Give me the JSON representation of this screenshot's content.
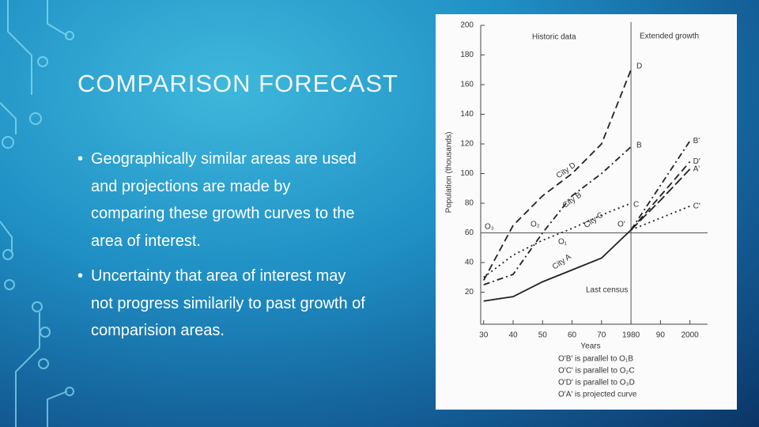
{
  "slide": {
    "title": "COMPARISON FORECAST",
    "bullets": [
      [
        "Geographically similar areas are used",
        "and projections are made by",
        "comparing these growth curves to the",
        "area of interest."
      ],
      [
        "Uncertainty that area of interest may",
        "not progress similarily to past growth of",
        "comparision areas."
      ]
    ]
  },
  "chart_data": {
    "type": "line",
    "y_label": "Population (thousands)",
    "x_label": "Years",
    "x": [
      1930,
      1940,
      1950,
      1960,
      1970,
      1980,
      1990,
      2000
    ],
    "xlim": [
      1929,
      2006
    ],
    "ylim": [
      0,
      200
    ],
    "xticks": [
      {
        "value": 1930,
        "label": "30"
      },
      {
        "value": 1940,
        "label": "40"
      },
      {
        "value": 1950,
        "label": "50"
      },
      {
        "value": 1960,
        "label": "60"
      },
      {
        "value": 1970,
        "label": "70"
      },
      {
        "value": 1980,
        "label": "1980"
      },
      {
        "value": 1990,
        "label": "90"
      },
      {
        "value": 2000,
        "label": "2000"
      }
    ],
    "yticks": [
      20,
      40,
      60,
      80,
      100,
      120,
      140,
      160,
      180,
      200
    ],
    "reference_y": 60,
    "reference_x": 1980,
    "series": [
      {
        "name": "City D",
        "color": "#222",
        "dash": "9 5",
        "values": [
          28,
          65,
          85,
          100,
          120,
          170,
          null,
          null
        ]
      },
      {
        "name": "City B",
        "color": "#222",
        "dash": "8 4 2 4",
        "values": [
          25,
          32,
          60,
          85,
          100,
          118,
          null,
          null
        ]
      },
      {
        "name": "City C",
        "color": "#222",
        "dash": "2 4",
        "values": [
          30,
          45,
          55,
          63,
          72,
          80,
          null,
          null
        ]
      },
      {
        "name": "City A",
        "color": "#222",
        "dash": "",
        "values": [
          14,
          17,
          27,
          35,
          43,
          62,
          null,
          null
        ]
      },
      {
        "name": "D'",
        "color": "#222",
        "dash": "9 5",
        "values": [
          null,
          null,
          null,
          null,
          null,
          62,
          85,
          108
        ]
      },
      {
        "name": "B'",
        "color": "#222",
        "dash": "8 4 2 4",
        "values": [
          null,
          null,
          null,
          null,
          null,
          62,
          92,
          122
        ]
      },
      {
        "name": "C'",
        "color": "#222",
        "dash": "2 4",
        "values": [
          null,
          null,
          null,
          null,
          null,
          62,
          70,
          78
        ]
      },
      {
        "name": "A'",
        "color": "#222",
        "dash": "12 4",
        "values": [
          null,
          null,
          null,
          null,
          null,
          62,
          82,
          103
        ]
      }
    ],
    "annotations": [
      "Historic data",
      "Extended growth",
      "Last census",
      "D",
      "B",
      "C",
      "O'",
      "O₃",
      "O₂",
      "O₁"
    ],
    "notes": [
      "O'B' is parallel to O₁B",
      "O'C' is parallel to O₂C",
      "O'D' is parallel to O₃D",
      "O'A' is projected curve"
    ]
  }
}
